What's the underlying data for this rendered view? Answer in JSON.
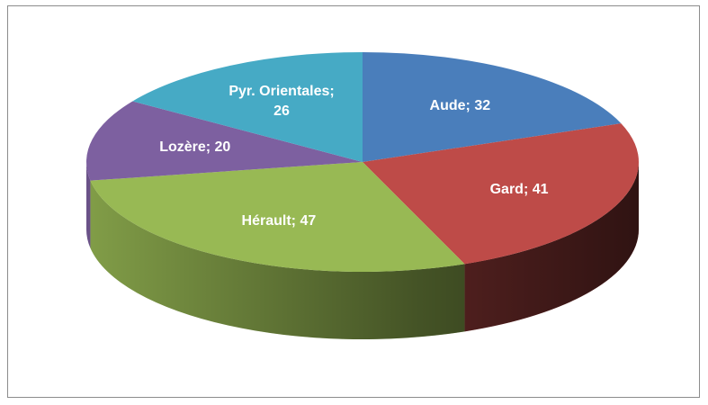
{
  "chart_data": {
    "type": "pie3d",
    "values": [
      32,
      41,
      47,
      20,
      26
    ],
    "value_labels": [
      "Aude; 32",
      "Gard; 41",
      "Hérault; 47",
      "Lozère; 20",
      "Pyr. Orientales; 26"
    ],
    "colors": [
      "#4a7ebb",
      "#be4b48",
      "#98b954",
      "#7d60a0",
      "#46aac5"
    ]
  }
}
